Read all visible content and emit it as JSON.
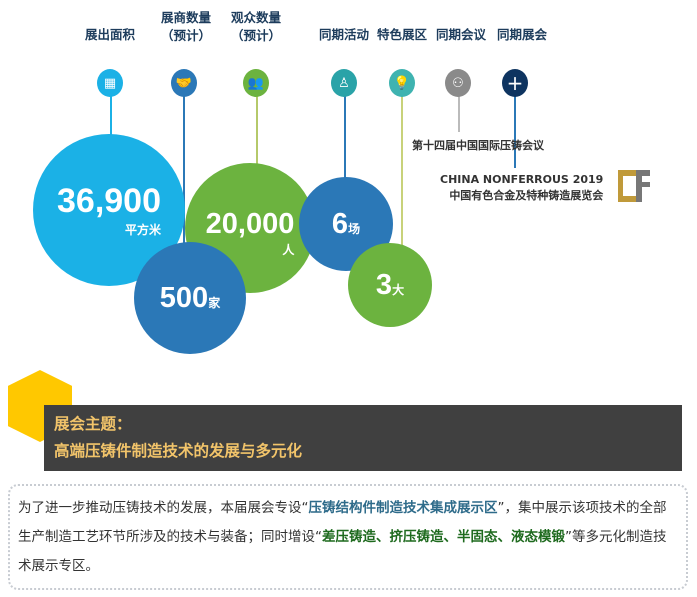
{
  "headers": [
    "展出面积",
    "展商数量",
    "（预计）",
    "观众数量",
    "（预计）",
    "同期活动",
    "特色展区",
    "同期会议",
    "同期展会"
  ],
  "icons": [
    "floor-area-icon",
    "handshake-icon",
    "audience-icon",
    "speaker-icon",
    "lightbulb-icon",
    "meeting-icon",
    "plus-icon"
  ],
  "colors": {
    "cyan": "#1bb1e6",
    "blue": "#2b78b7",
    "green": "#6cb33f",
    "teal": "#2aa3a8",
    "gray": "#8a8a8a",
    "navy": "#0e3460",
    "banner": "#404040",
    "gold": "#f2c46a",
    "yellow": "#ffc800"
  },
  "stats": {
    "area": {
      "value": "36,900",
      "unit": "平方米"
    },
    "exhibitors": {
      "value": "500",
      "unit": "家"
    },
    "visitors": {
      "value": "20,000",
      "unit": "人"
    },
    "events": {
      "value": "6",
      "unit": "场"
    },
    "zones": {
      "value": "3",
      "unit": "大"
    }
  },
  "conference": "第十四届中国国际压铸会议",
  "expo": {
    "en": "CHINA NONFERROUS 2019",
    "cn": "中国有色合金及特种铸造展览会",
    "logo": "CNF"
  },
  "theme": {
    "label": "展会主题：",
    "title": "高端压铸件制造技术的发展与多元化"
  },
  "body": {
    "t1": "为了进一步推动压铸技术的发展，本届展会专设“",
    "h1": "压铸结构件制造技术集成展示区",
    "t2": "”，集中展示该项技术的全部生产制造工艺环节所涉及的技术与装备；同时增设“",
    "h2": "差压铸造、挤压铸造、半固态、液态模锻",
    "t3": "”等多元化制造技术展示专区。"
  }
}
